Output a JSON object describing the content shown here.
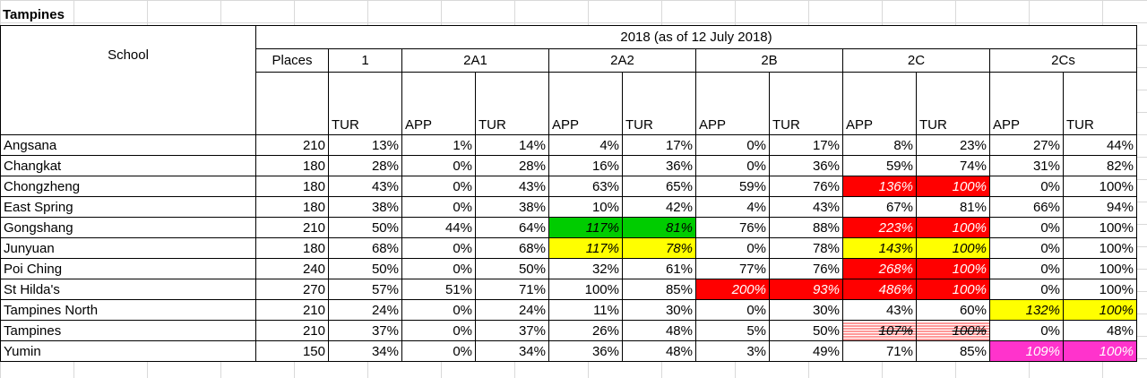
{
  "title": "Tampines",
  "header": {
    "school": "School",
    "period": "2018 (as of 12 July 2018)",
    "places": "Places",
    "groups": [
      "1",
      "2A1",
      "2A2",
      "2B",
      "2C",
      "2Cs"
    ],
    "app": "APP",
    "tur": "TUR"
  },
  "rows": [
    {
      "name": "Angsana",
      "places": "210",
      "v": [
        "13%",
        "1%",
        "14%",
        "4%",
        "17%",
        "0%",
        "17%",
        "8%",
        "23%",
        "27%",
        "44%"
      ]
    },
    {
      "name": "Changkat",
      "places": "180",
      "v": [
        "28%",
        "0%",
        "28%",
        "16%",
        "36%",
        "0%",
        "36%",
        "59%",
        "74%",
        "31%",
        "82%"
      ]
    },
    {
      "name": "Chongzheng",
      "places": "180",
      "v": [
        "43%",
        "0%",
        "43%",
        "63%",
        "65%",
        "59%",
        "76%",
        "136%",
        "100%",
        "0%",
        "100%"
      ]
    },
    {
      "name": "East Spring",
      "places": "180",
      "v": [
        "38%",
        "0%",
        "38%",
        "10%",
        "42%",
        "4%",
        "43%",
        "67%",
        "81%",
        "66%",
        "94%"
      ]
    },
    {
      "name": "Gongshang",
      "places": "210",
      "v": [
        "50%",
        "44%",
        "64%",
        "117%",
        "81%",
        "76%",
        "88%",
        "223%",
        "100%",
        "0%",
        "100%"
      ]
    },
    {
      "name": "Junyuan",
      "places": "180",
      "v": [
        "68%",
        "0%",
        "68%",
        "117%",
        "78%",
        "0%",
        "78%",
        "143%",
        "100%",
        "0%",
        "100%"
      ]
    },
    {
      "name": "Poi Ching",
      "places": "240",
      "v": [
        "50%",
        "0%",
        "50%",
        "32%",
        "61%",
        "77%",
        "76%",
        "268%",
        "100%",
        "0%",
        "100%"
      ]
    },
    {
      "name": "St Hilda's",
      "places": "270",
      "v": [
        "57%",
        "51%",
        "71%",
        "100%",
        "85%",
        "200%",
        "93%",
        "486%",
        "100%",
        "0%",
        "100%"
      ]
    },
    {
      "name": "Tampines North",
      "places": "210",
      "v": [
        "24%",
        "0%",
        "24%",
        "11%",
        "30%",
        "0%",
        "30%",
        "43%",
        "60%",
        "132%",
        "100%"
      ]
    },
    {
      "name": "Tampines",
      "places": "210",
      "v": [
        "37%",
        "0%",
        "37%",
        "26%",
        "48%",
        "5%",
        "50%",
        "107%",
        "100%",
        "0%",
        "48%"
      ]
    },
    {
      "name": "Yumin",
      "places": "150",
      "v": [
        "34%",
        "0%",
        "34%",
        "36%",
        "48%",
        "3%",
        "49%",
        "71%",
        "85%",
        "109%",
        "100%"
      ]
    }
  ],
  "highlights": {
    "Chongzheng": {
      "7": "red",
      "8": "red"
    },
    "Gongshang": {
      "3": "green",
      "4": "green",
      "7": "red",
      "8": "red"
    },
    "Junyuan": {
      "3": "yellow",
      "4": "yellow",
      "7": "yellow",
      "8": "yellow"
    },
    "Poi Ching": {
      "7": "red",
      "8": "red"
    },
    "St Hilda's": {
      "5": "red",
      "6": "red",
      "7": "red",
      "8": "red"
    },
    "Tampines North": {
      "9": "yellow",
      "10": "yellow"
    },
    "Tampines": {
      "7": "strike",
      "8": "strike"
    },
    "Yumin": {
      "9": "magenta",
      "10": "magenta"
    }
  },
  "colors": {
    "red": "#ff0000",
    "green": "#00cc00",
    "yellow": "#ffff00",
    "magenta": "#ff33cc"
  }
}
